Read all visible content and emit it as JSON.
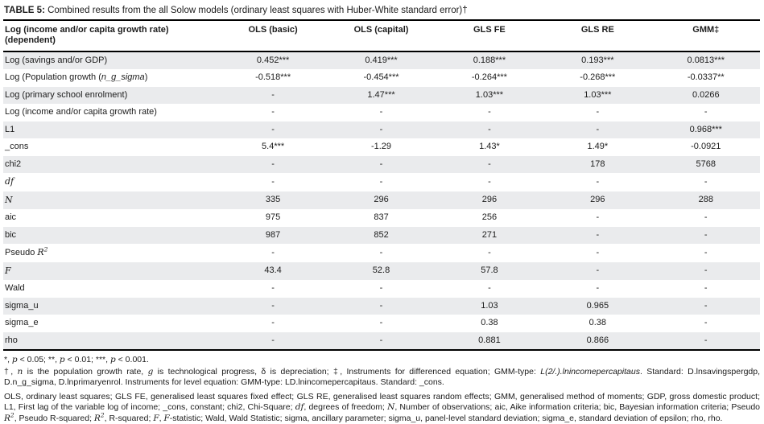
{
  "title": {
    "bold": "TABLE 5:",
    "rest": " Combined results from the all Solow models (ordinary least squares with Huber-White standard error)†"
  },
  "table": {
    "header": {
      "dependent_col": [
        "Log (income and/or capita growth rate)",
        "(dependent)"
      ],
      "model_cols": [
        "OLS (basic)",
        "OLS (capital)",
        "GLS FE",
        "GLS RE",
        "GMM‡"
      ]
    },
    "rows": [
      {
        "label": [
          {
            "t": "Log (savings and/or GDP)"
          }
        ],
        "values": [
          "0.452***",
          "0.419***",
          "0.188***",
          "0.193***",
          "0.0813***"
        ]
      },
      {
        "label": [
          {
            "t": "Log (Population growth ("
          },
          {
            "t": "n_g_sigma",
            "s": "i"
          },
          {
            "t": ")"
          }
        ],
        "values": [
          "-0.518***",
          "-0.454***",
          "-0.264***",
          "-0.268***",
          "-0.0337**"
        ]
      },
      {
        "label": [
          {
            "t": "Log (primary school enrolment)"
          }
        ],
        "values": [
          "-",
          "1.47***",
          "1.03***",
          "1.03***",
          "0.0266"
        ]
      },
      {
        "label": [
          {
            "t": "Log (income and/or capita growth rate)"
          }
        ],
        "values": [
          "-",
          "-",
          "-",
          "-",
          "-"
        ]
      },
      {
        "label": [
          {
            "t": "L1"
          }
        ],
        "values": [
          "-",
          "-",
          "-",
          "-",
          "0.968***"
        ]
      },
      {
        "label": [
          {
            "t": "_cons"
          }
        ],
        "values": [
          "5.4***",
          "-1.29",
          "1.43*",
          "1.49*",
          "-0.0921"
        ]
      },
      {
        "label": [
          {
            "t": "chi2"
          }
        ],
        "values": [
          "-",
          "-",
          "-",
          "178",
          "5768"
        ]
      },
      {
        "label": [
          {
            "t": "df",
            "s": "m"
          }
        ],
        "values": [
          "-",
          "-",
          "-",
          "-",
          "-"
        ]
      },
      {
        "label": [
          {
            "t": "N",
            "s": "m"
          }
        ],
        "values": [
          "335",
          "296",
          "296",
          "296",
          "288"
        ]
      },
      {
        "label": [
          {
            "t": "aic"
          }
        ],
        "values": [
          "975",
          "837",
          "256",
          "-",
          "-"
        ]
      },
      {
        "label": [
          {
            "t": "bic"
          }
        ],
        "values": [
          "987",
          "852",
          "271",
          "-",
          "-"
        ]
      },
      {
        "label": [
          {
            "t": "Pseudo "
          },
          {
            "t": "R",
            "s": "m"
          },
          {
            "t": "2",
            "s": "sup"
          }
        ],
        "values": [
          "-",
          "-",
          "-",
          "-",
          "-"
        ]
      },
      {
        "label": [
          {
            "t": "F",
            "s": "m"
          }
        ],
        "values": [
          "43.4",
          "52.8",
          "57.8",
          "-",
          "-"
        ]
      },
      {
        "label": [
          {
            "t": "Wald"
          }
        ],
        "values": [
          "-",
          "-",
          "-",
          "-",
          "-"
        ]
      },
      {
        "label": [
          {
            "t": "sigma_u"
          }
        ],
        "values": [
          "-",
          "-",
          "1.03",
          "0.965",
          "-"
        ]
      },
      {
        "label": [
          {
            "t": "sigma_e"
          }
        ],
        "values": [
          "-",
          "-",
          "0.38",
          "0.38",
          "-"
        ]
      },
      {
        "label": [
          {
            "t": "rho"
          }
        ],
        "values": [
          "-",
          "-",
          "0.881",
          "0.866",
          "-"
        ]
      }
    ]
  },
  "footnotes": {
    "significance": [
      {
        "t": "*, "
      },
      {
        "t": "p",
        "s": "m"
      },
      {
        "t": " < 0.05; **, "
      },
      {
        "t": "p",
        "s": "m"
      },
      {
        "t": " < 0.01; ***, "
      },
      {
        "t": "p",
        "s": "m"
      },
      {
        "t": " < 0.001."
      }
    ],
    "daggers": [
      {
        "t": "†, "
      },
      {
        "t": "n",
        "s": "m"
      },
      {
        "t": " is the population growth rate, "
      },
      {
        "t": "g",
        "s": "m"
      },
      {
        "t": " is technological progress, δ is depreciation; ‡, Instruments for differenced equation; GMM-type: "
      },
      {
        "t": "L(2/.).lnincomepercapitaus",
        "s": "i"
      },
      {
        "t": ". Standard: D.lnsavingspergdp, D.n_g_sigma, D.lnprimaryenrol. Instruments for level equation: GMM-type: LD.lnincomepercapitaus. Standard: _cons."
      }
    ],
    "abbreviations": [
      {
        "t": "OLS, ordinary least squares; GLS FE, generalised least squares fixed effect; GLS RE, generalised least squares random effects; GMM, generalised method of moments; GDP, gross domestic product; L1, First lag of the variable log of income; _cons, constant; chi2, Chi-Square; "
      },
      {
        "t": "df",
        "s": "m"
      },
      {
        "t": ", degrees of freedom; "
      },
      {
        "t": "N",
        "s": "m"
      },
      {
        "t": ", Number of observations; aic, Aike information criteria; bic, Bayesian information criteria; Pseudo "
      },
      {
        "t": "R",
        "s": "m"
      },
      {
        "t": "2",
        "s": "sup"
      },
      {
        "t": ", Pseudo R-squared; "
      },
      {
        "t": "R",
        "s": "m"
      },
      {
        "t": "2",
        "s": "sup"
      },
      {
        "t": ", R-squared; "
      },
      {
        "t": "F",
        "s": "m"
      },
      {
        "t": ", "
      },
      {
        "t": "F",
        "s": "m"
      },
      {
        "t": "-statistic; Wald, Wald Statistic; sigma, ancillary parameter; sigma_u, panel-level standard deviation; sigma_e, standard deviation of epsilon; rho, rho."
      }
    ]
  },
  "colors": {
    "stripe": "#eaebed",
    "rule": "#000000",
    "text": "#1c1c1c"
  }
}
